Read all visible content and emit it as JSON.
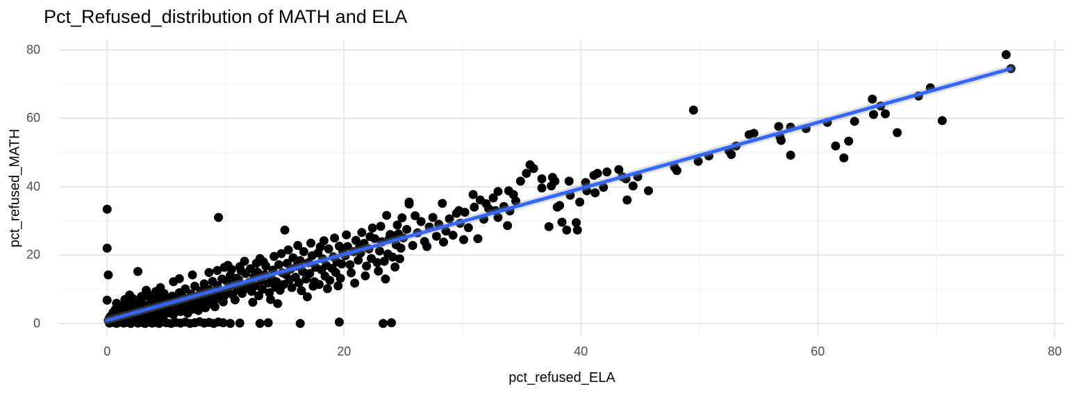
{
  "chart_data": {
    "type": "scatter",
    "title": "Pct_Refused_distribution of MATH and ELA",
    "xlabel": "pct_refused_ELA",
    "ylabel": "pct_refused_MATH",
    "x_ticks": [
      {
        "label": "0",
        "value": 0
      },
      {
        "label": "20",
        "value": 20
      },
      {
        "label": "40",
        "value": 40
      },
      {
        "label": "60",
        "value": 60
      },
      {
        "label": "80",
        "value": 80
      }
    ],
    "y_ticks": [
      {
        "label": "0",
        "value": 0
      },
      {
        "label": "20",
        "value": 20
      },
      {
        "label": "40",
        "value": 40
      },
      {
        "label": "60",
        "value": 60
      },
      {
        "label": "80",
        "value": 80
      }
    ],
    "x_minor_ticks": [
      10,
      30,
      50,
      70
    ],
    "y_minor_ticks": [
      10,
      30,
      50,
      70
    ],
    "xlim": [
      -4.0,
      80.8
    ],
    "ylim": [
      -3.9,
      82.8
    ],
    "grid": "major and minor, light gray on white panel",
    "legend_position": "none",
    "colors": {
      "point": "#000000",
      "trend_line": "#3366FF",
      "se_band": "#9a9a9a",
      "grid_major": "#e4e4e4",
      "grid_minor": "#f1f1f1",
      "tick_text": "#4d4d4d",
      "title_text": "#000000"
    },
    "point_radius_px": 6.5,
    "trend": {
      "type": "linear_fit",
      "x0": 0,
      "y0": 0.9,
      "x1": 76.3,
      "y1": 74.5,
      "se_band": true
    },
    "points": [
      [
        0,
        33.4
      ],
      [
        0,
        22
      ],
      [
        0.1,
        14.2
      ],
      [
        0,
        6.8
      ],
      [
        2.6,
        15.2
      ],
      [
        9.4,
        31
      ],
      [
        49.5,
        62.4
      ],
      [
        15,
        27.3
      ],
      [
        16.9,
        7.8
      ],
      [
        0.2,
        0.1
      ],
      [
        0.5,
        0.3
      ],
      [
        0.8,
        0
      ],
      [
        1.1,
        0.4
      ],
      [
        1.4,
        0.1
      ],
      [
        1.7,
        0.3
      ],
      [
        2,
        0
      ],
      [
        2.3,
        0.5
      ],
      [
        2.6,
        0.1
      ],
      [
        2.9,
        0.3
      ],
      [
        3.2,
        0
      ],
      [
        3.5,
        0.4
      ],
      [
        3.8,
        0.1
      ],
      [
        4.1,
        0.3
      ],
      [
        4.4,
        0
      ],
      [
        4.7,
        0.5
      ],
      [
        5,
        0.2
      ],
      [
        5.4,
        0
      ],
      [
        5.8,
        0.3
      ],
      [
        6.2,
        0.1
      ],
      [
        6.6,
        0.4
      ],
      [
        7,
        0
      ],
      [
        7.4,
        0.2
      ],
      [
        7.8,
        0.5
      ],
      [
        8.2,
        0.1
      ],
      [
        8.6,
        0.3
      ],
      [
        9,
        0
      ],
      [
        9.4,
        0.4
      ],
      [
        9.8,
        0.2
      ],
      [
        10.4,
        0
      ],
      [
        11.2,
        0.1
      ],
      [
        12.9,
        0
      ],
      [
        13.6,
        0.2
      ],
      [
        16.3,
        0
      ],
      [
        19.6,
        0.4
      ],
      [
        23.3,
        0
      ],
      [
        24,
        0.2
      ],
      [
        0.1,
        0.9
      ],
      [
        0.3,
        2.1
      ],
      [
        0.4,
        0.5
      ],
      [
        0.5,
        3.2
      ],
      [
        0.6,
        1.4
      ],
      [
        0.7,
        4.1
      ],
      [
        0.8,
        0.7
      ],
      [
        0.9,
        2.6
      ],
      [
        1,
        1.1
      ],
      [
        1.1,
        5
      ],
      [
        1.2,
        1.8
      ],
      [
        1.3,
        3.5
      ],
      [
        1.4,
        0.9
      ],
      [
        1.5,
        2.3
      ],
      [
        1.6,
        6.1
      ],
      [
        1.7,
        1.5
      ],
      [
        1.8,
        4.4
      ],
      [
        1.9,
        2.9
      ],
      [
        2,
        1.2
      ],
      [
        2.1,
        3.8
      ],
      [
        2.2,
        7.2
      ],
      [
        2.3,
        2
      ],
      [
        2.4,
        4.9
      ],
      [
        2.5,
        1.6
      ],
      [
        2.6,
        3.3
      ],
      [
        2.7,
        5.8
      ],
      [
        2.8,
        2.4
      ],
      [
        2.9,
        7.9
      ],
      [
        3,
        3
      ],
      [
        3.1,
        1.9
      ],
      [
        3.2,
        5.2
      ],
      [
        3.3,
        3.7
      ],
      [
        3.4,
        8.6
      ],
      [
        3.5,
        2.7
      ],
      [
        3.6,
        4.6
      ],
      [
        3.7,
        6.7
      ],
      [
        3.8,
        3.4
      ],
      [
        3.9,
        1.7
      ],
      [
        4,
        5.5
      ],
      [
        4.1,
        9.3
      ],
      [
        4.2,
        4.1
      ],
      [
        4.3,
        2.8
      ],
      [
        4.4,
        6.3
      ],
      [
        4.5,
        3.9
      ],
      [
        4.6,
        8.1
      ],
      [
        4.7,
        5.1
      ],
      [
        4.8,
        2.5
      ],
      [
        4.9,
        6.9
      ],
      [
        5,
        4.4
      ],
      [
        0.2,
        1.6
      ],
      [
        0.6,
        2.8
      ],
      [
        1,
        3.9
      ],
      [
        1.3,
        0.6
      ],
      [
        1.7,
        2.2
      ],
      [
        2.1,
        1
      ],
      [
        2.4,
        3
      ],
      [
        2.8,
        4.3
      ],
      [
        3.1,
        2.3
      ],
      [
        3.4,
        1.2
      ],
      [
        3.7,
        2.9
      ],
      [
        4,
        1.5
      ],
      [
        4.3,
        5.9
      ],
      [
        4.6,
        2
      ],
      [
        4.9,
        3.6
      ],
      [
        0.8,
        5.9
      ],
      [
        1.5,
        7
      ],
      [
        2.2,
        5.4
      ],
      [
        2.9,
        6.5
      ],
      [
        3.6,
        7.6
      ],
      [
        4.2,
        7.4
      ],
      [
        4.8,
        8.8
      ],
      [
        1.9,
        8.3
      ],
      [
        3.3,
        9.7
      ],
      [
        4.5,
        10.5
      ],
      [
        5.1,
        5.9
      ],
      [
        5.2,
        3.1
      ],
      [
        5.3,
        6.8
      ],
      [
        5.4,
        4.5
      ],
      [
        5.5,
        8
      ],
      [
        5.6,
        2.6
      ],
      [
        5.7,
        5.3
      ],
      [
        5.8,
        7.1
      ],
      [
        5.9,
        4
      ],
      [
        6,
        6.2
      ],
      [
        6.1,
        9
      ],
      [
        6.2,
        3.5
      ],
      [
        6.3,
        5.7
      ],
      [
        6.4,
        7.7
      ],
      [
        6.5,
        4.8
      ],
      [
        6.6,
        10.1
      ],
      [
        6.7,
        6
      ],
      [
        6.8,
        3
      ],
      [
        6.9,
        7.4
      ],
      [
        7,
        5
      ],
      [
        7.1,
        8.6
      ],
      [
        7.2,
        4.2
      ],
      [
        7.3,
        6.6
      ],
      [
        7.4,
        10.9
      ],
      [
        7.5,
        5.5
      ],
      [
        7.6,
        7.8
      ],
      [
        7.7,
        3.8
      ],
      [
        7.8,
        6.4
      ],
      [
        7.9,
        9.5
      ],
      [
        8,
        5.2
      ],
      [
        8.1,
        7
      ],
      [
        8.2,
        11.6
      ],
      [
        8.3,
        4.6
      ],
      [
        8.4,
        8.3
      ],
      [
        8.5,
        6.1
      ],
      [
        8.6,
        9.9
      ],
      [
        8.7,
        5.8
      ],
      [
        8.8,
        7.5
      ],
      [
        8.9,
        12.3
      ],
      [
        9,
        6.6
      ],
      [
        9.1,
        4.9
      ],
      [
        9.2,
        8.9
      ],
      [
        9.3,
        11
      ],
      [
        9.5,
        7.2
      ],
      [
        9.6,
        9.4
      ],
      [
        9.7,
        13
      ],
      [
        9.8,
        6.3
      ],
      [
        9.9,
        8.1
      ],
      [
        5.6,
        12.2
      ],
      [
        6.1,
        13.1
      ],
      [
        7.2,
        14.2
      ],
      [
        8.6,
        14.9
      ],
      [
        9.3,
        15.5
      ],
      [
        9.9,
        16.4
      ],
      [
        10,
        9.2
      ],
      [
        10.1,
        12.4
      ],
      [
        10.3,
        10.8
      ],
      [
        10.4,
        14
      ],
      [
        10.6,
        8.4
      ],
      [
        10.7,
        11.6
      ],
      [
        10.9,
        13.2
      ],
      [
        11,
        9.9
      ],
      [
        11.1,
        12.8
      ],
      [
        11.3,
        15.4
      ],
      [
        11.4,
        8.8
      ],
      [
        11.5,
        11.2
      ],
      [
        11.7,
        14.6
      ],
      [
        11.8,
        10.4
      ],
      [
        12,
        12
      ],
      [
        12.1,
        16
      ],
      [
        12.2,
        9.4
      ],
      [
        12.4,
        13.6
      ],
      [
        12.5,
        11
      ],
      [
        12.7,
        15
      ],
      [
        12.8,
        8.1
      ],
      [
        13,
        12.5
      ],
      [
        13.1,
        10
      ],
      [
        13.3,
        14.3
      ],
      [
        13.4,
        16.8
      ],
      [
        13.6,
        11.8
      ],
      [
        13.7,
        9
      ],
      [
        13.9,
        13
      ],
      [
        14,
        15.6
      ],
      [
        14.2,
        10.6
      ],
      [
        14.3,
        12.2
      ],
      [
        14.5,
        17.2
      ],
      [
        14.6,
        9.7
      ],
      [
        14.8,
        14.8
      ],
      [
        14.9,
        11.4
      ],
      [
        10.2,
        17
      ],
      [
        11.6,
        18.2
      ],
      [
        12.9,
        19
      ],
      [
        14.1,
        19.6
      ],
      [
        10.8,
        6.9
      ],
      [
        12.3,
        6.2
      ],
      [
        13.8,
        7
      ],
      [
        14.4,
        5.8
      ],
      [
        11.2,
        16.6
      ],
      [
        13.2,
        18
      ],
      [
        14.7,
        20.4
      ],
      [
        10.5,
        15.8
      ],
      [
        12.6,
        17.6
      ],
      [
        15.1,
        14.3
      ],
      [
        15.2,
        17.6
      ],
      [
        15.4,
        12.8
      ],
      [
        15.5,
        15.9
      ],
      [
        15.7,
        19.2
      ],
      [
        15.9,
        13.5
      ],
      [
        16,
        16.8
      ],
      [
        16.2,
        11.9
      ],
      [
        16.3,
        18.4
      ],
      [
        16.5,
        15.2
      ],
      [
        16.6,
        21
      ],
      [
        16.8,
        13
      ],
      [
        17,
        17.8
      ],
      [
        17.1,
        14.6
      ],
      [
        17.3,
        19.8
      ],
      [
        17.5,
        12.2
      ],
      [
        17.6,
        16.4
      ],
      [
        17.8,
        20.6
      ],
      [
        17.9,
        11.4
      ],
      [
        18.1,
        15.7
      ],
      [
        18.2,
        18.9
      ],
      [
        18.4,
        13.8
      ],
      [
        18.5,
        17
      ],
      [
        18.7,
        21.8
      ],
      [
        18.8,
        12.6
      ],
      [
        19,
        16.1
      ],
      [
        19.1,
        19.5
      ],
      [
        19.3,
        14.9
      ],
      [
        19.4,
        18
      ],
      [
        19.6,
        22.6
      ],
      [
        19.7,
        13.2
      ],
      [
        19.8,
        17.4
      ],
      [
        19.9,
        20.9
      ],
      [
        15.3,
        21.5
      ],
      [
        16.1,
        22.8
      ],
      [
        17.2,
        23.5
      ],
      [
        18.3,
        24.2
      ],
      [
        19.2,
        25
      ],
      [
        15.6,
        10.5
      ],
      [
        16.4,
        9.6
      ],
      [
        17.4,
        10.9
      ],
      [
        18.6,
        10.2
      ],
      [
        19.5,
        11
      ],
      [
        18,
        22.4
      ],
      [
        20.1,
        19.8
      ],
      [
        20.3,
        22.5
      ],
      [
        20.5,
        17.2
      ],
      [
        20.8,
        21
      ],
      [
        21,
        24.3
      ],
      [
        21.2,
        18.5
      ],
      [
        21.4,
        20.6
      ],
      [
        21.7,
        23.4
      ],
      [
        21.9,
        16.8
      ],
      [
        22.1,
        21.8
      ],
      [
        22.3,
        19
      ],
      [
        22.6,
        24.8
      ],
      [
        22.8,
        17.8
      ],
      [
        23,
        21.2
      ],
      [
        23.2,
        23.9
      ],
      [
        23.4,
        18.2
      ],
      [
        23.7,
        20.3
      ],
      [
        23.9,
        26
      ],
      [
        24.1,
        19.4
      ],
      [
        24.4,
        23
      ],
      [
        20.2,
        25.9
      ],
      [
        21.5,
        26.6
      ],
      [
        22.4,
        27.9
      ],
      [
        23.1,
        28.4
      ],
      [
        24.6,
        26.2
      ],
      [
        20.6,
        14.8
      ],
      [
        21.8,
        13.9
      ],
      [
        22.9,
        15.3
      ],
      [
        23.5,
        13
      ],
      [
        24.3,
        16.5
      ],
      [
        20.9,
        11.8
      ],
      [
        22.2,
        25.4
      ],
      [
        23.8,
        24.6
      ],
      [
        24.7,
        18.9
      ],
      [
        21.3,
        22.2
      ],
      [
        25.5,
        34.9
      ],
      [
        25.5,
        35.5
      ],
      [
        28.3,
        35.1
      ],
      [
        23.6,
        31.6
      ],
      [
        25,
        25
      ],
      [
        25.3,
        27.5
      ],
      [
        25.8,
        22.8
      ],
      [
        26.2,
        26.5
      ],
      [
        26.5,
        29.8
      ],
      [
        26.8,
        24
      ],
      [
        27.2,
        28.2
      ],
      [
        27.5,
        31
      ],
      [
        27.8,
        25.5
      ],
      [
        28,
        29
      ],
      [
        28.6,
        27
      ],
      [
        28.9,
        30.6
      ],
      [
        29.2,
        25.8
      ],
      [
        29.5,
        32.2
      ],
      [
        29.8,
        29.3
      ],
      [
        26,
        31.5
      ],
      [
        27,
        22.5
      ],
      [
        28.4,
        23.8
      ],
      [
        24.2,
        25.6
      ],
      [
        24.5,
        28.8
      ],
      [
        24.8,
        22
      ],
      [
        24.9,
        30.9
      ],
      [
        30.9,
        37.7
      ],
      [
        31.5,
        36.1
      ],
      [
        32.6,
        36.7
      ],
      [
        32.8,
        33
      ],
      [
        34.3,
        37.7
      ],
      [
        34.9,
        41.6
      ],
      [
        30.2,
        32.5
      ],
      [
        30.5,
        28
      ],
      [
        31,
        34
      ],
      [
        31.8,
        30.5
      ],
      [
        32,
        35
      ],
      [
        33,
        31
      ],
      [
        33.5,
        34.2
      ],
      [
        33.8,
        28.6
      ],
      [
        34.5,
        35.8
      ],
      [
        30.1,
        24.5
      ],
      [
        31.3,
        24.8
      ],
      [
        34,
        32.9
      ],
      [
        33,
        38.6
      ],
      [
        33.9,
        38.8
      ],
      [
        32.2,
        33.6
      ],
      [
        29.7,
        33
      ],
      [
        36,
        45.3
      ],
      [
        36.7,
        42.3
      ],
      [
        36.7,
        39.6
      ],
      [
        37.6,
        42.7
      ],
      [
        37.8,
        41.6
      ],
      [
        37.5,
        40.2
      ],
      [
        38,
        34
      ],
      [
        38.2,
        34.5
      ],
      [
        37.3,
        28.3
      ],
      [
        38.4,
        29.6
      ],
      [
        38.8,
        27.3
      ],
      [
        39,
        41.6
      ],
      [
        39.1,
        37.5
      ],
      [
        39.6,
        29.5
      ],
      [
        39.7,
        27.3
      ],
      [
        39.9,
        35.5
      ],
      [
        35.7,
        46.4
      ],
      [
        35.4,
        43.9
      ],
      [
        40.4,
        41.2
      ],
      [
        40.5,
        38.8
      ],
      [
        41.1,
        43.3
      ],
      [
        41.2,
        38.2
      ],
      [
        41.4,
        43.9
      ],
      [
        41.9,
        39.8
      ],
      [
        42.2,
        44.3
      ],
      [
        43.2,
        45
      ],
      [
        43.5,
        42.9
      ],
      [
        43.8,
        42.3
      ],
      [
        43.9,
        36.1
      ],
      [
        44.4,
        40.2
      ],
      [
        44.8,
        42.9
      ],
      [
        45.7,
        38.8
      ],
      [
        47.9,
        45.7
      ],
      [
        48.1,
        44.7
      ],
      [
        49.9,
        47.4
      ],
      [
        50.8,
        49
      ],
      [
        52.5,
        50.5
      ],
      [
        52.7,
        49.4
      ],
      [
        53.1,
        51.9
      ],
      [
        54.2,
        55.2
      ],
      [
        54.6,
        55.6
      ],
      [
        56.7,
        57.6
      ],
      [
        56.8,
        54.6
      ],
      [
        56.9,
        53.5
      ],
      [
        57.7,
        49.2
      ],
      [
        57.7,
        57.4
      ],
      [
        59,
        57
      ],
      [
        60.8,
        58.8
      ],
      [
        61.5,
        51.9
      ],
      [
        62.2,
        48.4
      ],
      [
        62.6,
        53.3
      ],
      [
        63.1,
        59.1
      ],
      [
        64.6,
        65.6
      ],
      [
        64.7,
        61.1
      ],
      [
        65.3,
        63.6
      ],
      [
        65.7,
        61.3
      ],
      [
        66.7,
        55.8
      ],
      [
        68.5,
        66.5
      ],
      [
        69.5,
        68.9
      ],
      [
        70.5,
        59.3
      ],
      [
        75.9,
        78.6
      ],
      [
        76.3,
        74.5
      ]
    ]
  }
}
